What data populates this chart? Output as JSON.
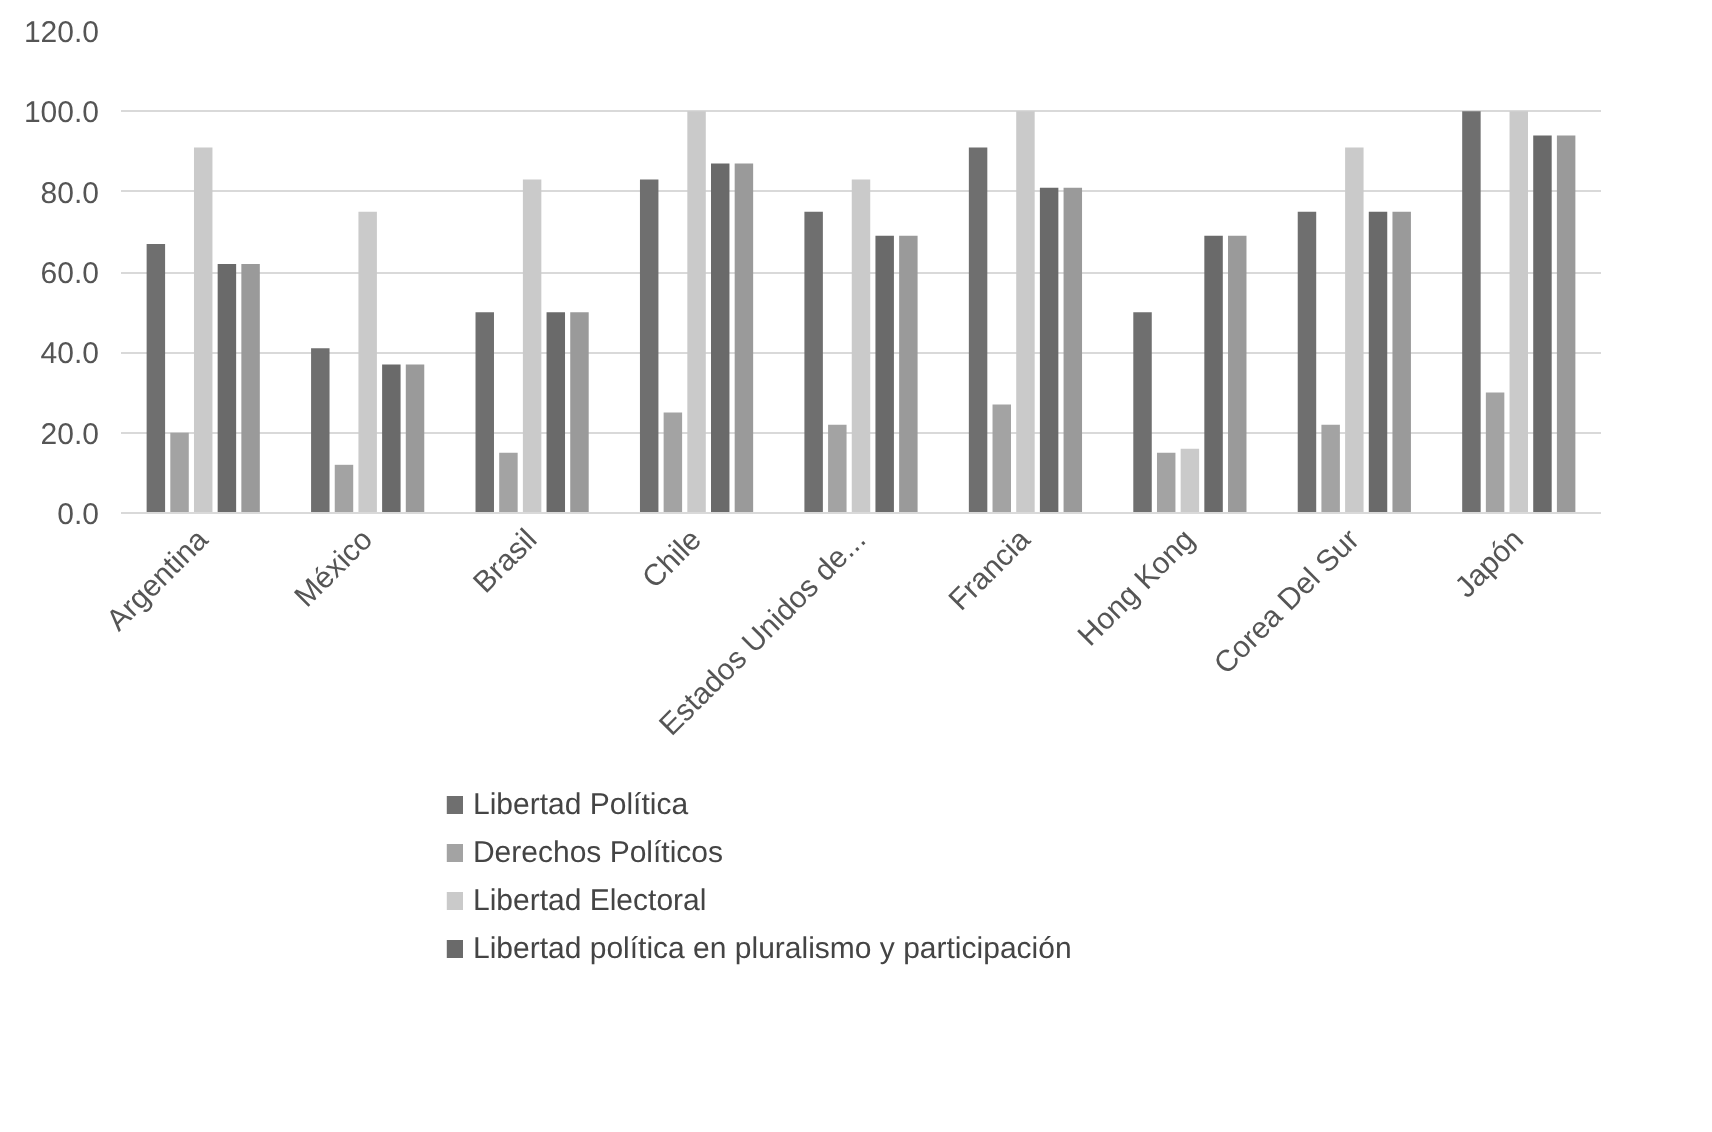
{
  "chart_data": {
    "type": "bar",
    "categories": [
      "Argentina",
      "México",
      "Brasil",
      "Chile",
      "Estados Unidos de...",
      "Francia",
      "Hong Kong",
      "Corea Del Sur",
      "Japón"
    ],
    "series": [
      {
        "name": "Libertad Política",
        "color": "#6f6f6f",
        "values": [
          67,
          41,
          50,
          83,
          75,
          91,
          50,
          75,
          100
        ]
      },
      {
        "name": "Derechos Políticos",
        "color": "#a3a3a3",
        "values": [
          20,
          12,
          15,
          25,
          22,
          27,
          15,
          22,
          30
        ]
      },
      {
        "name": "Libertad Electoral",
        "color": "#cacaca",
        "values": [
          91,
          75,
          83,
          100,
          83,
          100,
          16,
          91,
          100
        ]
      },
      {
        "name": "Libertad política en pluralismo y participación",
        "color": "#6a6a6a",
        "values": [
          62,
          37,
          50,
          87,
          69,
          81,
          69,
          75,
          94
        ]
      },
      {
        "color": "#9a9a9a",
        "values": [
          62,
          37,
          50,
          87,
          69,
          81,
          69,
          75,
          94
        ]
      }
    ],
    "ylim": [
      0,
      120
    ],
    "yticks": [
      {
        "value": 0,
        "label": "0.0"
      },
      {
        "value": 20,
        "label": "20.0"
      },
      {
        "value": 40,
        "label": "40.0"
      },
      {
        "value": 60,
        "label": "60.0"
      },
      {
        "value": 80,
        "label": "80.0"
      },
      {
        "value": 100,
        "label": "100.0"
      },
      {
        "value": 120,
        "label": "120.0"
      }
    ],
    "grid": "y",
    "legend": "bottom"
  }
}
